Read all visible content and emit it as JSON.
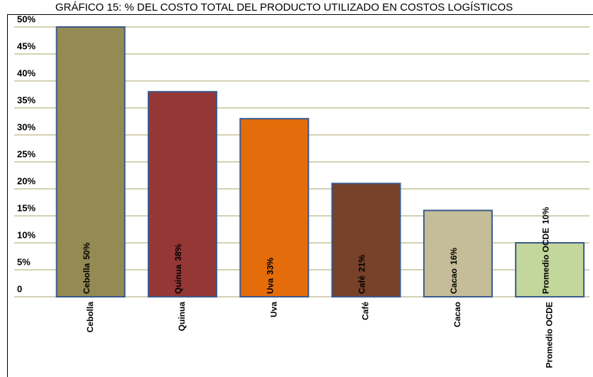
{
  "chart_data": {
    "type": "bar",
    "title": "GRÁFICO 15: % DEL COSTO TOTAL DEL PRODUCTO UTILIZADO EN COSTOS LOGÍSTICOS",
    "categories": [
      "Cebolla",
      "Quinua",
      "Uva",
      "Café",
      "Cacao",
      "Promedio OCDE"
    ],
    "values": [
      50,
      38,
      33,
      21,
      16,
      10
    ],
    "value_labels": [
      "50%",
      "38%",
      "33%",
      "21%",
      "16%",
      "10%"
    ],
    "colors": [
      "#948a54",
      "#953735",
      "#e46c0a",
      "#77412a",
      "#c4bd97",
      "#c3d69b"
    ],
    "ylim": [
      0,
      50
    ],
    "yticks": [
      0,
      {
        "value": 5,
        "label": "5%"
      },
      {
        "value": 10,
        "label": "10%"
      },
      {
        "value": 15,
        "label": "15%"
      },
      {
        "value": 20,
        "label": "20%"
      },
      {
        "value": 25,
        "label": "25%"
      },
      {
        "value": 30,
        "label": "30%"
      },
      {
        "value": 35,
        "label": "35%"
      },
      {
        "value": 40,
        "label": "40%"
      },
      {
        "value": 45,
        "label": "45%"
      },
      {
        "value": 50,
        "label": "50%"
      }
    ],
    "grid": true
  }
}
